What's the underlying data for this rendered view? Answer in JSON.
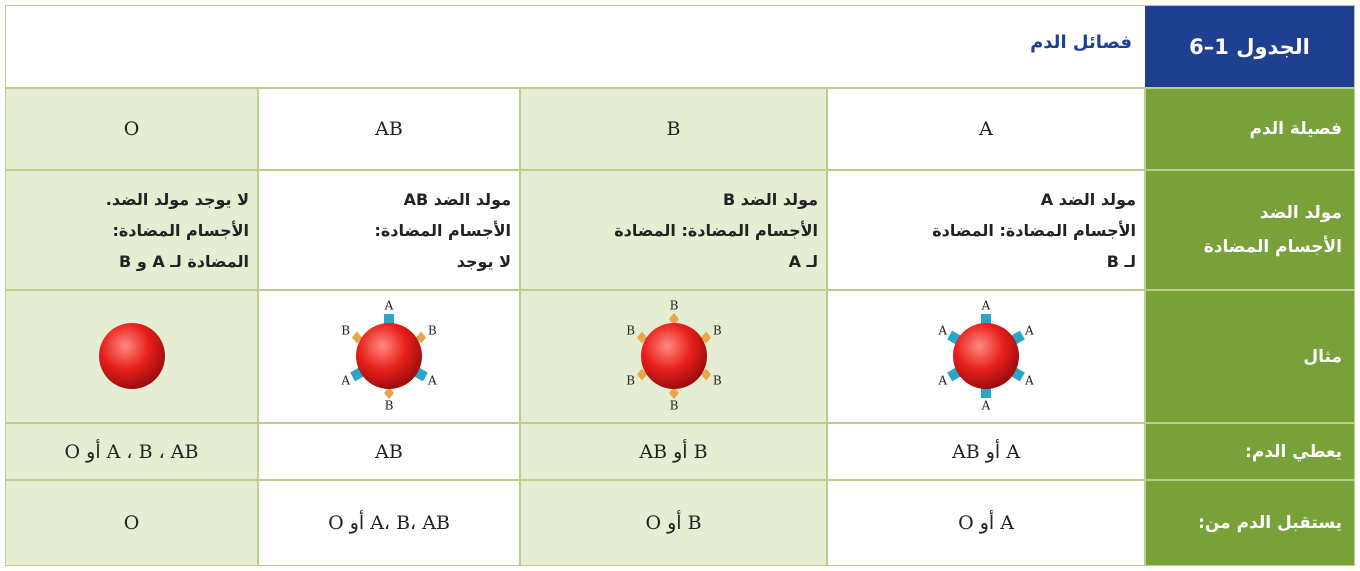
{
  "header": {
    "table_number": "الجدول 1–6",
    "title": "فصائل الدم"
  },
  "table": {
    "rows": [
      {
        "label": [
          "فصيلة الدم"
        ],
        "cells": [
          [
            "A"
          ],
          [
            "B"
          ],
          [
            "AB"
          ],
          [
            "O"
          ]
        ]
      },
      {
        "label": [
          "مولد الضد",
          "الأجسام المضادة"
        ],
        "cells": [
          [
            "مولد الضد A",
            "الأجسام المضادة: المضادة",
            "لـ B"
          ],
          [
            "مولد الضد B",
            "الأجسام المضادة: المضادة",
            "لـ A"
          ],
          [
            "مولد الضد AB",
            "الأجسام المضادة:",
            "لا يوجد"
          ],
          [
            "لا يوجد مولد الضد.",
            "الأجسام المضادة:",
            "المضادة لـ A و B"
          ]
        ]
      },
      {
        "label": [
          "مثال"
        ],
        "markers": [
          [
            "A",
            "A",
            "A",
            "A",
            "A",
            "A"
          ],
          [
            "B",
            "B",
            "B",
            "B",
            "B",
            "B"
          ],
          [
            "A",
            "B",
            "A",
            "B",
            "A",
            "B"
          ],
          []
        ]
      },
      {
        "label": [
          "يعطي الدم:"
        ],
        "cells": [
          [
            "A أو AB"
          ],
          [
            "B أو AB"
          ],
          [
            "AB"
          ],
          [
            "A ، B ، AB أو O"
          ]
        ]
      },
      {
        "label": [
          "يستقبل الدم من:"
        ],
        "cells": [
          [
            "A أو O"
          ],
          [
            "B أو O"
          ],
          [
            "A، B، AB أو O"
          ],
          [
            "O"
          ]
        ]
      }
    ]
  }
}
